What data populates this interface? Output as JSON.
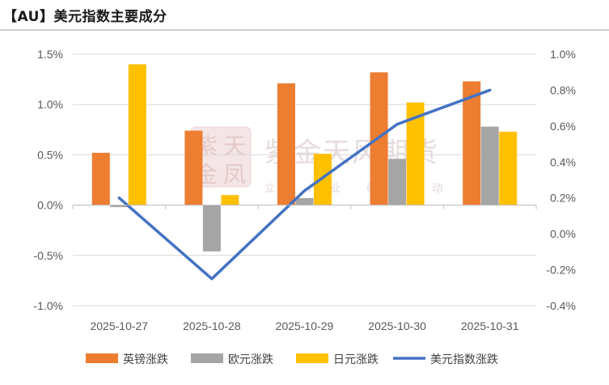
{
  "title": "【AU】美元指数主要成分",
  "colors": {
    "gbp": "#ED7D31",
    "eur": "#A5A5A5",
    "jpy": "#FFC000",
    "dxy": "#4472C4",
    "grid": "#D9D9D9",
    "watermark": "#E3C9C9"
  },
  "watermark": {
    "logo_chars": "紫天金凤",
    "name": "紫金天风期货",
    "slogan": "立足产业 研究驱动"
  },
  "chart_data": {
    "type": "bar",
    "categories": [
      "2025-10-27",
      "2025-10-28",
      "2025-10-29",
      "2025-10-30",
      "2025-10-31"
    ],
    "series": [
      {
        "name": "英镑涨跌",
        "axis": "left",
        "type": "bar",
        "values": [
          0.52,
          0.74,
          1.21,
          1.32,
          1.23
        ]
      },
      {
        "name": "欧元涨跌",
        "axis": "left",
        "type": "bar",
        "values": [
          -0.02,
          -0.46,
          0.07,
          0.46,
          0.78
        ]
      },
      {
        "name": "日元涨跌",
        "axis": "left",
        "type": "bar",
        "values": [
          1.4,
          0.1,
          0.51,
          1.02,
          0.73
        ]
      },
      {
        "name": "美元指数涨跌",
        "axis": "right",
        "type": "line",
        "values": [
          0.2,
          -0.25,
          0.24,
          0.61,
          0.8
        ]
      }
    ],
    "left_axis": {
      "ylim": [
        -1.0,
        1.5
      ],
      "ticks": [
        "1.5%",
        "1.0%",
        "0.5%",
        "0.0%",
        "-0.5%",
        "-1.0%"
      ],
      "tick_values": [
        1.5,
        1.0,
        0.5,
        0.0,
        -0.5,
        -1.0
      ]
    },
    "right_axis": {
      "ylim": [
        -0.4,
        1.0
      ],
      "ticks": [
        "1.0%",
        "0.8%",
        "0.6%",
        "0.4%",
        "0.2%",
        "0.0%",
        "-0.2%",
        "-0.4%"
      ],
      "tick_values": [
        1.0,
        0.8,
        0.6,
        0.4,
        0.2,
        0.0,
        -0.2,
        -0.4
      ]
    },
    "grid": true,
    "legend": "bottom"
  }
}
